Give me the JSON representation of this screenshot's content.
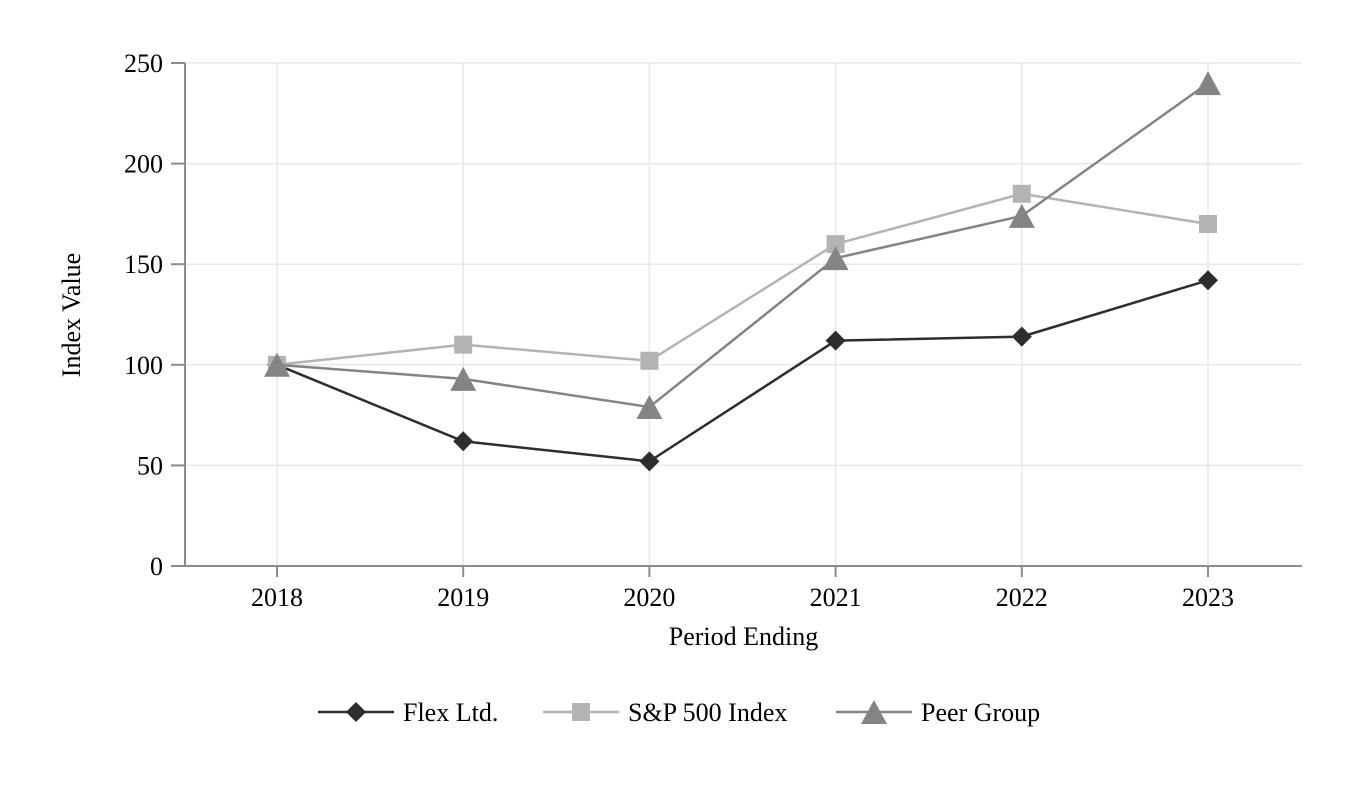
{
  "figure": {
    "background_color": "#ffffff",
    "grid_color": "#e8e8e8",
    "axis_color": "#8c8c8c",
    "text_color": "#000000"
  },
  "chart_data": {
    "type": "line",
    "title": "",
    "xlabel": "Period Ending",
    "ylabel": "Index Value",
    "x_categories": [
      "2018",
      "2019",
      "2020",
      "2021",
      "2022",
      "2023"
    ],
    "y_ticks": [
      0,
      50,
      100,
      150,
      200,
      250
    ],
    "ylim": [
      0,
      250
    ],
    "grid": "horizontal and vertical gridlines, light gray",
    "legend_position": "bottom",
    "series": [
      {
        "name": "Flex Ltd.",
        "marker": "diamond",
        "color": "#2d2d2d",
        "values": [
          100,
          62,
          52,
          112,
          114,
          142
        ]
      },
      {
        "name": "S&P 500 Index",
        "marker": "square",
        "color": "#b3b3b3",
        "values": [
          100,
          110,
          102,
          160,
          185,
          170
        ]
      },
      {
        "name": "Peer Group",
        "marker": "triangle",
        "color": "#848484",
        "values": [
          100,
          93,
          79,
          153,
          174,
          240
        ]
      }
    ]
  }
}
